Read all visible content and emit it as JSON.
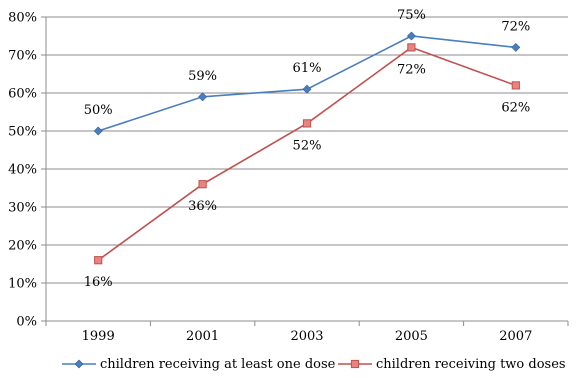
{
  "chart_data": {
    "type": "line",
    "categories": [
      "1999",
      "2001",
      "2003",
      "2005",
      "2007"
    ],
    "ylim": [
      0,
      80
    ],
    "y_ticks": [
      "0%",
      "10%",
      "20%",
      "30%",
      "40%",
      "50%",
      "60%",
      "70%",
      "80%"
    ],
    "y_tick_values": [
      0,
      10,
      20,
      30,
      40,
      50,
      60,
      70,
      80
    ],
    "grid": "horizontal",
    "legend_position": "bottom",
    "series": [
      {
        "name": "children receiving at least one dose",
        "values": [
          50,
          59,
          61,
          75,
          72
        ],
        "labels": [
          "50%",
          "59%",
          "61%",
          "75%",
          "72%"
        ],
        "label_position": "above",
        "color": "#4a7ebf",
        "marker": "diamond"
      },
      {
        "name": "children receiving two doses",
        "values": [
          16,
          36,
          52,
          72,
          62
        ],
        "labels": [
          "16%",
          "36%",
          "52%",
          "72%",
          "62%"
        ],
        "label_position": "below",
        "color": "#c0504d",
        "marker": "square"
      }
    ]
  }
}
